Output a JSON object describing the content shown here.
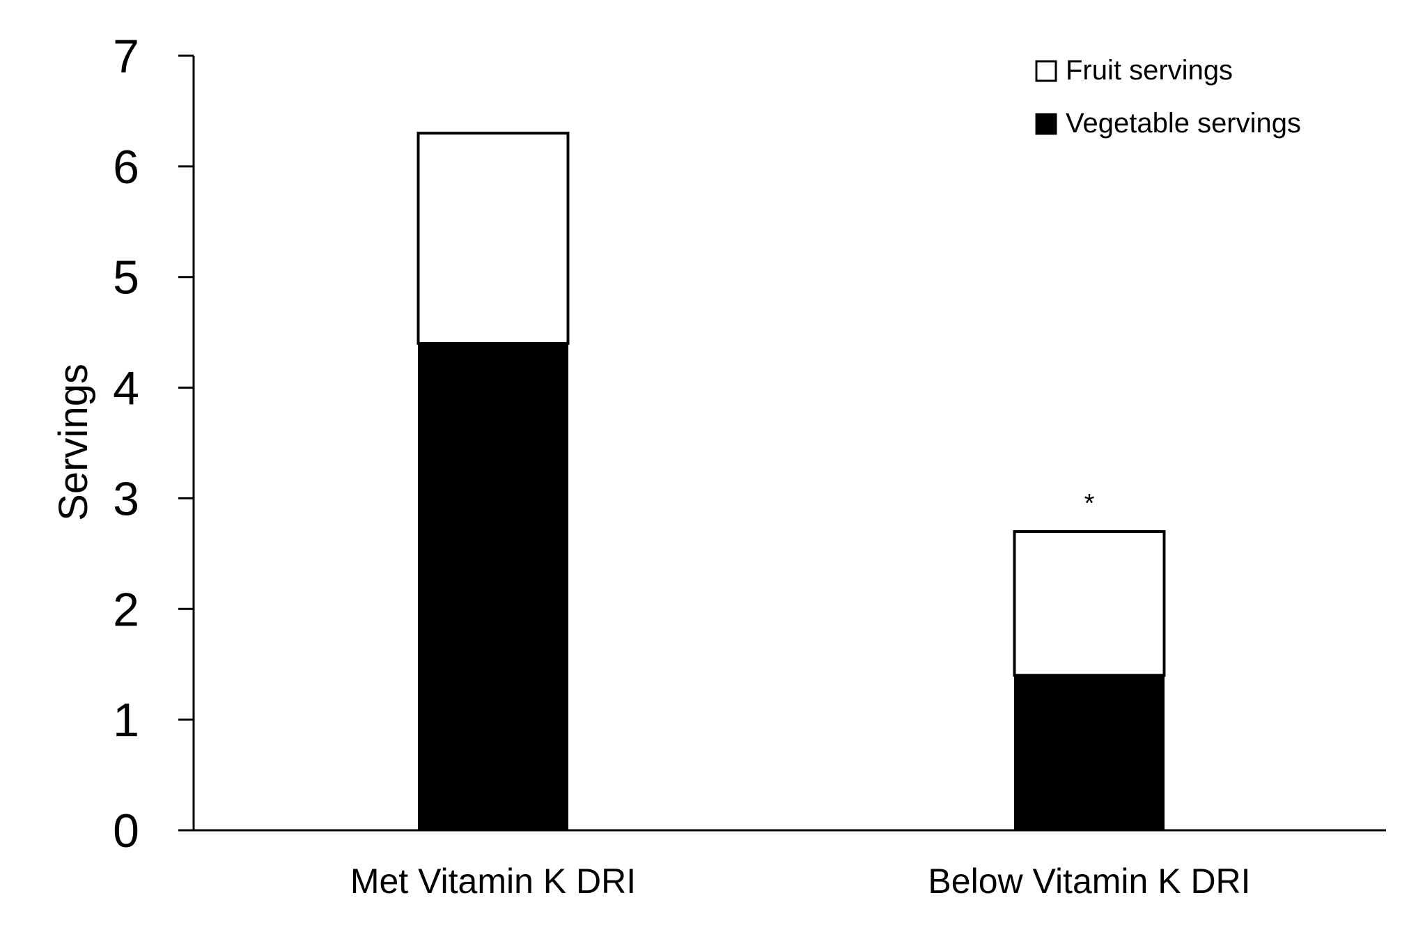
{
  "chart_data": {
    "type": "bar",
    "stacked": true,
    "title": "",
    "xlabel": "",
    "ylabel": "Servings",
    "ylim": [
      0,
      7
    ],
    "yticks": [
      "0",
      "1",
      "2",
      "3",
      "4",
      "5",
      "6",
      "7"
    ],
    "categories": [
      "Met Vitamin K DRI",
      "Below Vitamin K DRI"
    ],
    "series": [
      {
        "name": "Vegetable servings",
        "values": [
          4.4,
          1.4
        ],
        "color": "#000000"
      },
      {
        "name": "Fruit servings",
        "values": [
          1.9,
          1.3
        ],
        "color": "#ffffff"
      }
    ],
    "annotations": [
      {
        "category": "Below Vitamin K DRI",
        "text": "*"
      }
    ],
    "legend": {
      "placement": "top-right",
      "entries": [
        "Fruit servings",
        "Vegetable servings"
      ]
    },
    "grid": false
  }
}
